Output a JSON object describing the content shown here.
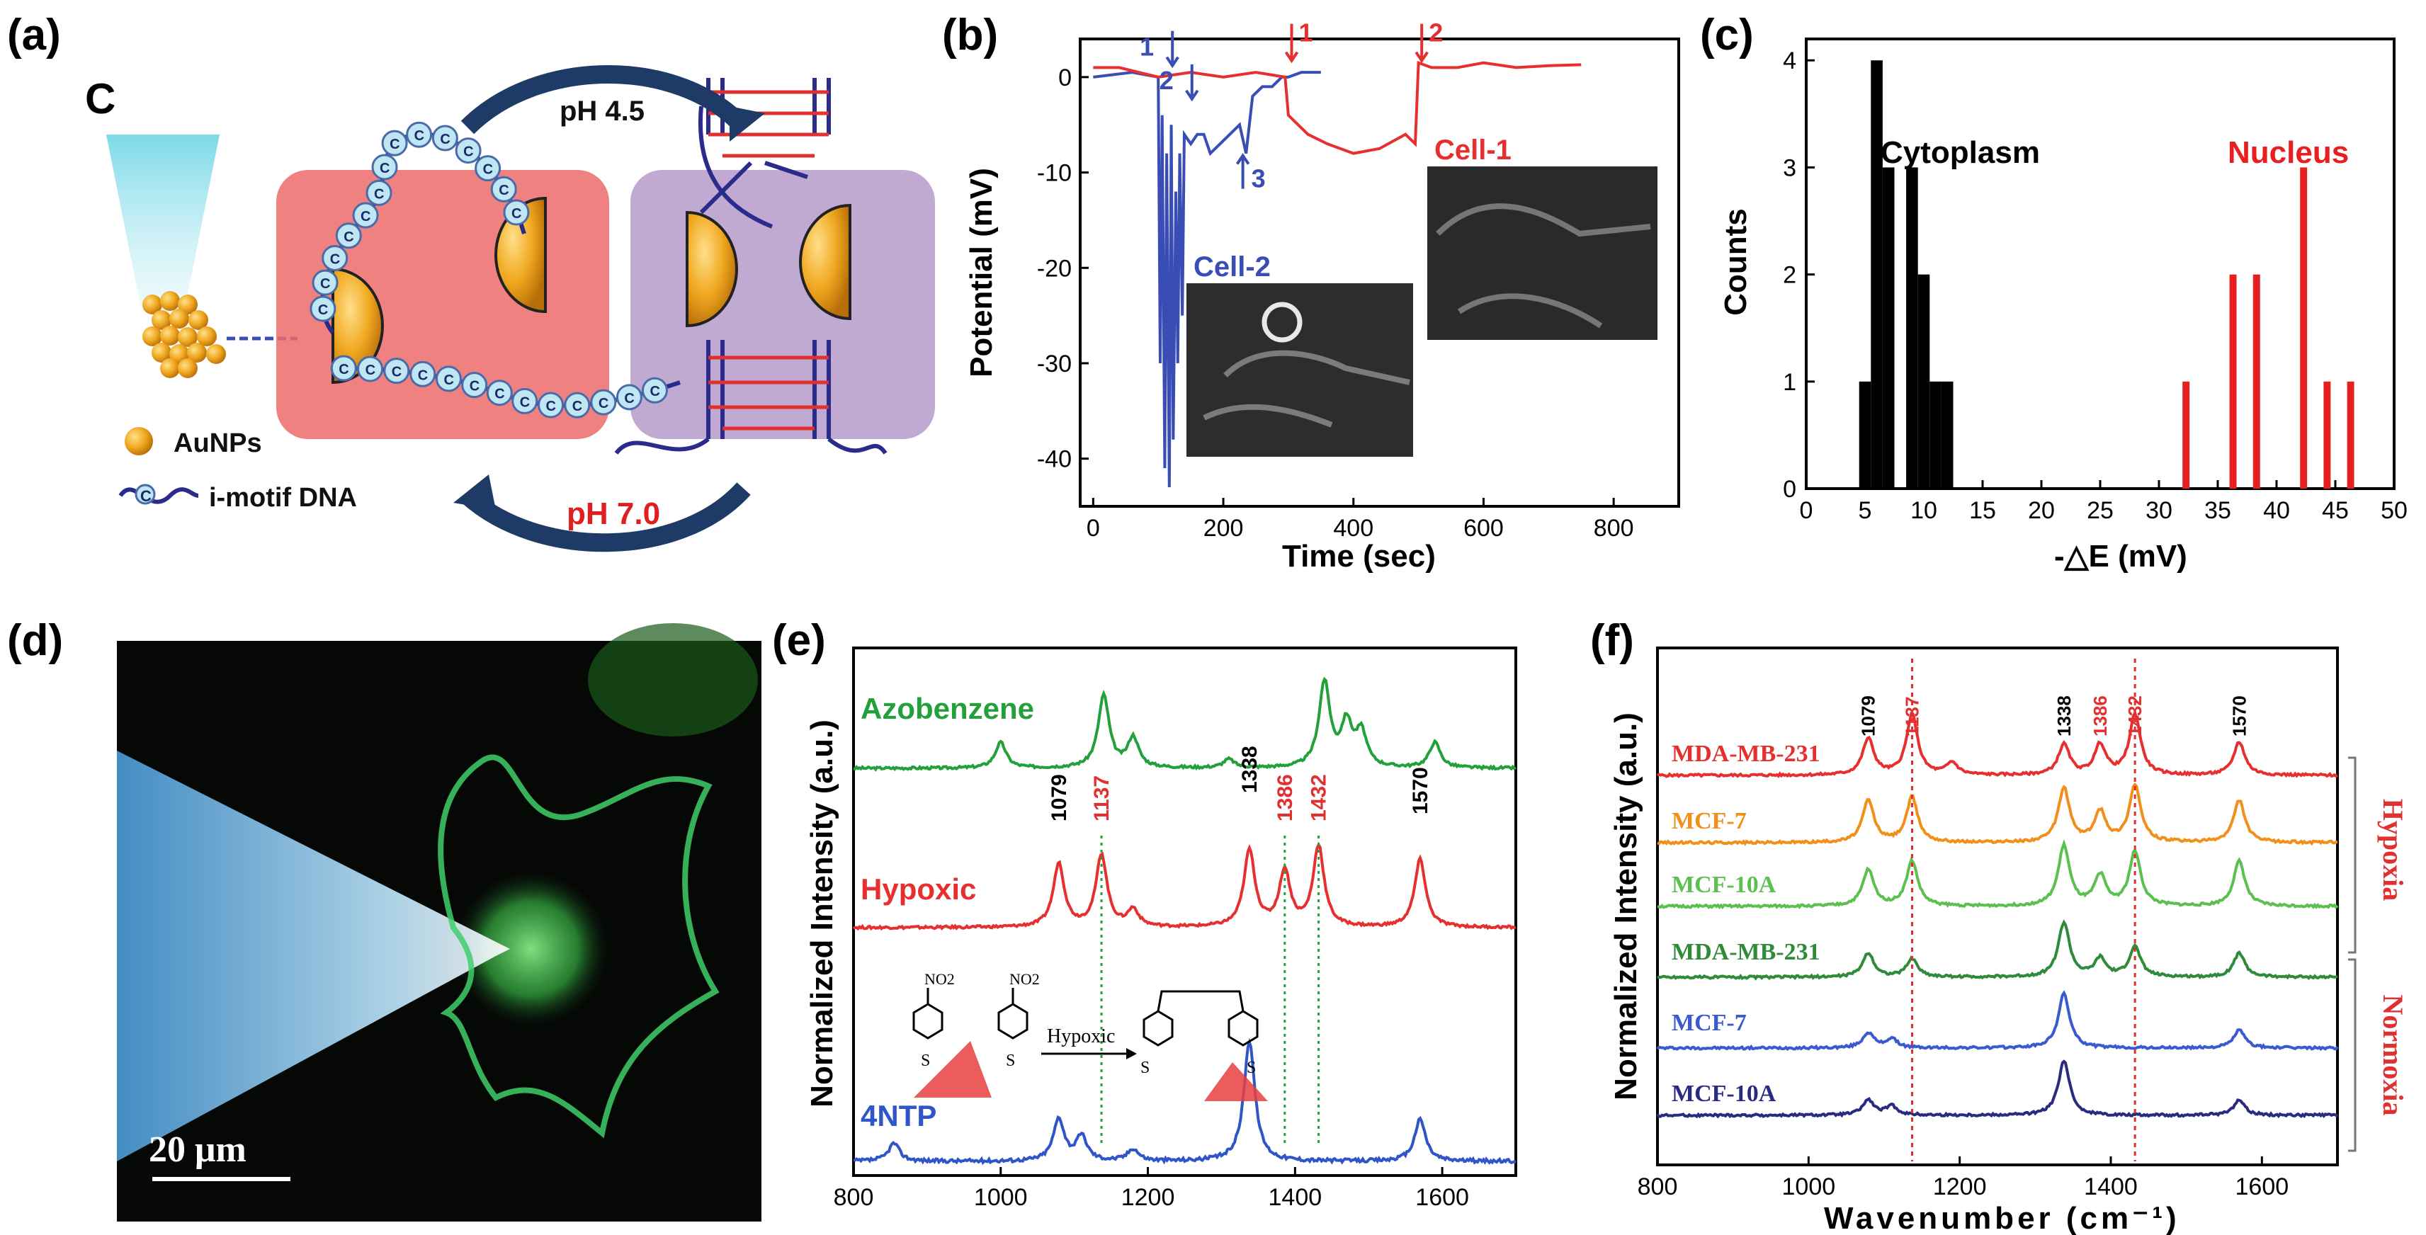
{
  "panels": {
    "a": {
      "label": "(a)",
      "corner_letter": "C",
      "ph_top": "pH 4.5",
      "ph_bottom": "pH 7.0",
      "legend": [
        {
          "name": "AuNPs"
        },
        {
          "name": "i-motif DNA",
          "glyph": "C"
        }
      ],
      "strand_base": "C",
      "colors": {
        "red_box": "#ec6b6b",
        "purple_box": "#b59bc9",
        "gold": "#f0a820",
        "dna": "#2b2b8c",
        "pair": "#e03030",
        "arrow": "#1e3a66",
        "ph_red": "#e02020"
      }
    },
    "b": {
      "label": "(b)",
      "cell1": "Cell-1",
      "cell2": "Cell-2",
      "markers": {
        "blue": [
          "1",
          "2",
          "3"
        ],
        "red": [
          "1",
          "2"
        ]
      },
      "colors": {
        "cell1": "#e63030",
        "cell2": "#3a4db5"
      }
    },
    "c": {
      "label": "(c)",
      "cytoplasm_label": "Cytoplasm",
      "nucleus_label": "Nucleus",
      "colors": {
        "cytoplasm": "#000000",
        "nucleus": "#e62020"
      }
    },
    "d": {
      "label": "(d)",
      "scale_bar": "20 μm"
    },
    "e": {
      "label": "(e)",
      "series_labels": [
        "Azobenzene",
        "Hypoxic",
        "4NTP"
      ],
      "peaks": [
        "1079",
        "1137",
        "1338",
        "1386",
        "1432",
        "1570"
      ],
      "red_peaks": [
        "1137",
        "1386",
        "1432"
      ],
      "molecule": {
        "group": "NO2",
        "reaction": "Hypoxic",
        "atom": "S"
      },
      "colors": {
        "azobenzene": "#22a03a",
        "hypoxic": "#e63030",
        "4ntp": "#2f55c8"
      }
    },
    "f": {
      "label": "(f)",
      "series_labels": [
        "MDA-MB-231",
        "MCF-7",
        "MCF-10A",
        "MDA-MB-231",
        "MCF-7",
        "MCF-10A"
      ],
      "peaks": [
        "1079",
        "1137",
        "1338",
        "1386",
        "1432",
        "1570"
      ],
      "red_peaks": [
        "1137",
        "1386",
        "1432"
      ],
      "groups": [
        "Hypoxia",
        "Normoxia"
      ],
      "colors": [
        "#e63030",
        "#f0901a",
        "#5cc050",
        "#2f8a3a",
        "#3a5ad0",
        "#2a2a80"
      ]
    }
  },
  "chart_data": [
    {
      "panel": "b",
      "type": "line",
      "xlabel": "Time (sec)",
      "ylabel": "Potential (mV)",
      "xlim": [
        -20,
        900
      ],
      "ylim": [
        -45,
        4
      ],
      "xticks": [
        0,
        200,
        400,
        600,
        800
      ],
      "yticks": [
        0,
        -10,
        -20,
        -30,
        -40
      ],
      "series": [
        {
          "name": "Cell-2",
          "x": [
            0,
            60,
            100,
            103,
            106,
            110,
            113,
            117,
            120,
            123,
            127,
            130,
            133,
            137,
            140,
            150,
            160,
            170,
            180,
            195,
            210,
            225,
            235,
            245,
            260,
            275,
            290,
            300,
            320,
            350
          ],
          "y": [
            0,
            0.5,
            0,
            -30,
            -4,
            -41,
            -8,
            -43,
            -5,
            -38,
            -12,
            -30,
            -8,
            -25,
            -6,
            -7,
            -6,
            -6,
            -8,
            -7,
            -6,
            -5,
            -8,
            -2,
            -1,
            -1,
            0,
            0,
            0.5,
            0.5
          ]
        },
        {
          "name": "Cell-1",
          "x": [
            0,
            40,
            100,
            150,
            200,
            250,
            295,
            300,
            330,
            360,
            400,
            440,
            480,
            495,
            500,
            520,
            560,
            600,
            650,
            700,
            750
          ],
          "y": [
            1,
            1,
            0,
            0.5,
            0,
            0.5,
            0,
            -4,
            -6,
            -7,
            -8,
            -7.5,
            -6,
            -7,
            1.5,
            1,
            1,
            1.5,
            1,
            1.2,
            1.3
          ]
        }
      ]
    },
    {
      "panel": "c",
      "type": "bar",
      "xlabel": "-△E (mV)",
      "ylabel": "Counts",
      "xlim": [
        0,
        50
      ],
      "ylim": [
        0,
        4.2
      ],
      "xticks": [
        0,
        5,
        10,
        15,
        20,
        25,
        30,
        35,
        40,
        45,
        50
      ],
      "yticks": [
        0,
        1,
        2,
        3,
        4
      ],
      "series": [
        {
          "name": "Cytoplasm",
          "x": [
            5,
            6,
            7,
            9,
            10,
            11,
            12
          ],
          "values": [
            1,
            4,
            3,
            3,
            2,
            1,
            1
          ]
        },
        {
          "name": "Nucleus",
          "x": [
            32.5,
            36.5,
            38.5,
            42.5,
            44.5,
            46.5
          ],
          "values": [
            1,
            2,
            2,
            3,
            1,
            1
          ]
        }
      ]
    },
    {
      "panel": "e",
      "type": "line",
      "xlabel": "",
      "ylabel": "Normalized Intensity (a.u.)",
      "xlim": [
        800,
        1700
      ],
      "xticks": [
        800,
        1000,
        1200,
        1400,
        1600
      ],
      "series": [
        {
          "name": "Azobenzene",
          "peaks": [
            [
              1000,
              0.3
            ],
            [
              1140,
              0.85
            ],
            [
              1180,
              0.35
            ],
            [
              1310,
              0.1
            ],
            [
              1440,
              1.0
            ],
            [
              1470,
              0.5
            ],
            [
              1490,
              0.4
            ],
            [
              1590,
              0.3
            ]
          ]
        },
        {
          "name": "Hypoxic",
          "peaks": [
            [
              1079,
              0.75
            ],
            [
              1137,
              0.85
            ],
            [
              1180,
              0.2
            ],
            [
              1338,
              0.9
            ],
            [
              1386,
              0.65
            ],
            [
              1432,
              0.95
            ],
            [
              1570,
              0.8
            ]
          ]
        },
        {
          "name": "4NTP",
          "peaks": [
            [
              855,
              0.15
            ],
            [
              1079,
              0.35
            ],
            [
              1110,
              0.2
            ],
            [
              1180,
              0.1
            ],
            [
              1338,
              1.0
            ],
            [
              1570,
              0.35
            ]
          ]
        }
      ]
    },
    {
      "panel": "f",
      "type": "line",
      "xlabel": "Wavenumber (cm⁻¹)",
      "ylabel": "Normalized Intensity (a.u.)",
      "xlim": [
        800,
        1700
      ],
      "xticks": [
        800,
        1000,
        1200,
        1400,
        1600
      ],
      "series": [
        {
          "name": "MDA-MB-231",
          "peaks": [
            [
              1079,
              0.6
            ],
            [
              1137,
              1.0
            ],
            [
              1190,
              0.2
            ],
            [
              1338,
              0.5
            ],
            [
              1386,
              0.5
            ],
            [
              1432,
              1.0
            ],
            [
              1570,
              0.55
            ]
          ]
        },
        {
          "name": "MCF-7",
          "peaks": [
            [
              1079,
              0.7
            ],
            [
              1137,
              0.75
            ],
            [
              1338,
              0.9
            ],
            [
              1386,
              0.5
            ],
            [
              1432,
              0.95
            ],
            [
              1570,
              0.7
            ]
          ]
        },
        {
          "name": "MCF-10A",
          "peaks": [
            [
              1079,
              0.6
            ],
            [
              1137,
              0.75
            ],
            [
              1338,
              1.0
            ],
            [
              1386,
              0.5
            ],
            [
              1432,
              0.9
            ],
            [
              1570,
              0.75
            ]
          ]
        },
        {
          "name": "MDA-MB-231",
          "peaks": [
            [
              1079,
              0.4
            ],
            [
              1137,
              0.3
            ],
            [
              1338,
              0.9
            ],
            [
              1386,
              0.3
            ],
            [
              1432,
              0.5
            ],
            [
              1570,
              0.4
            ]
          ]
        },
        {
          "name": "MCF-7",
          "peaks": [
            [
              1079,
              0.25
            ],
            [
              1110,
              0.15
            ],
            [
              1338,
              0.9
            ],
            [
              1570,
              0.3
            ]
          ]
        },
        {
          "name": "MCF-10A",
          "peaks": [
            [
              1079,
              0.25
            ],
            [
              1110,
              0.15
            ],
            [
              1338,
              0.9
            ],
            [
              1570,
              0.25
            ]
          ]
        }
      ]
    }
  ]
}
